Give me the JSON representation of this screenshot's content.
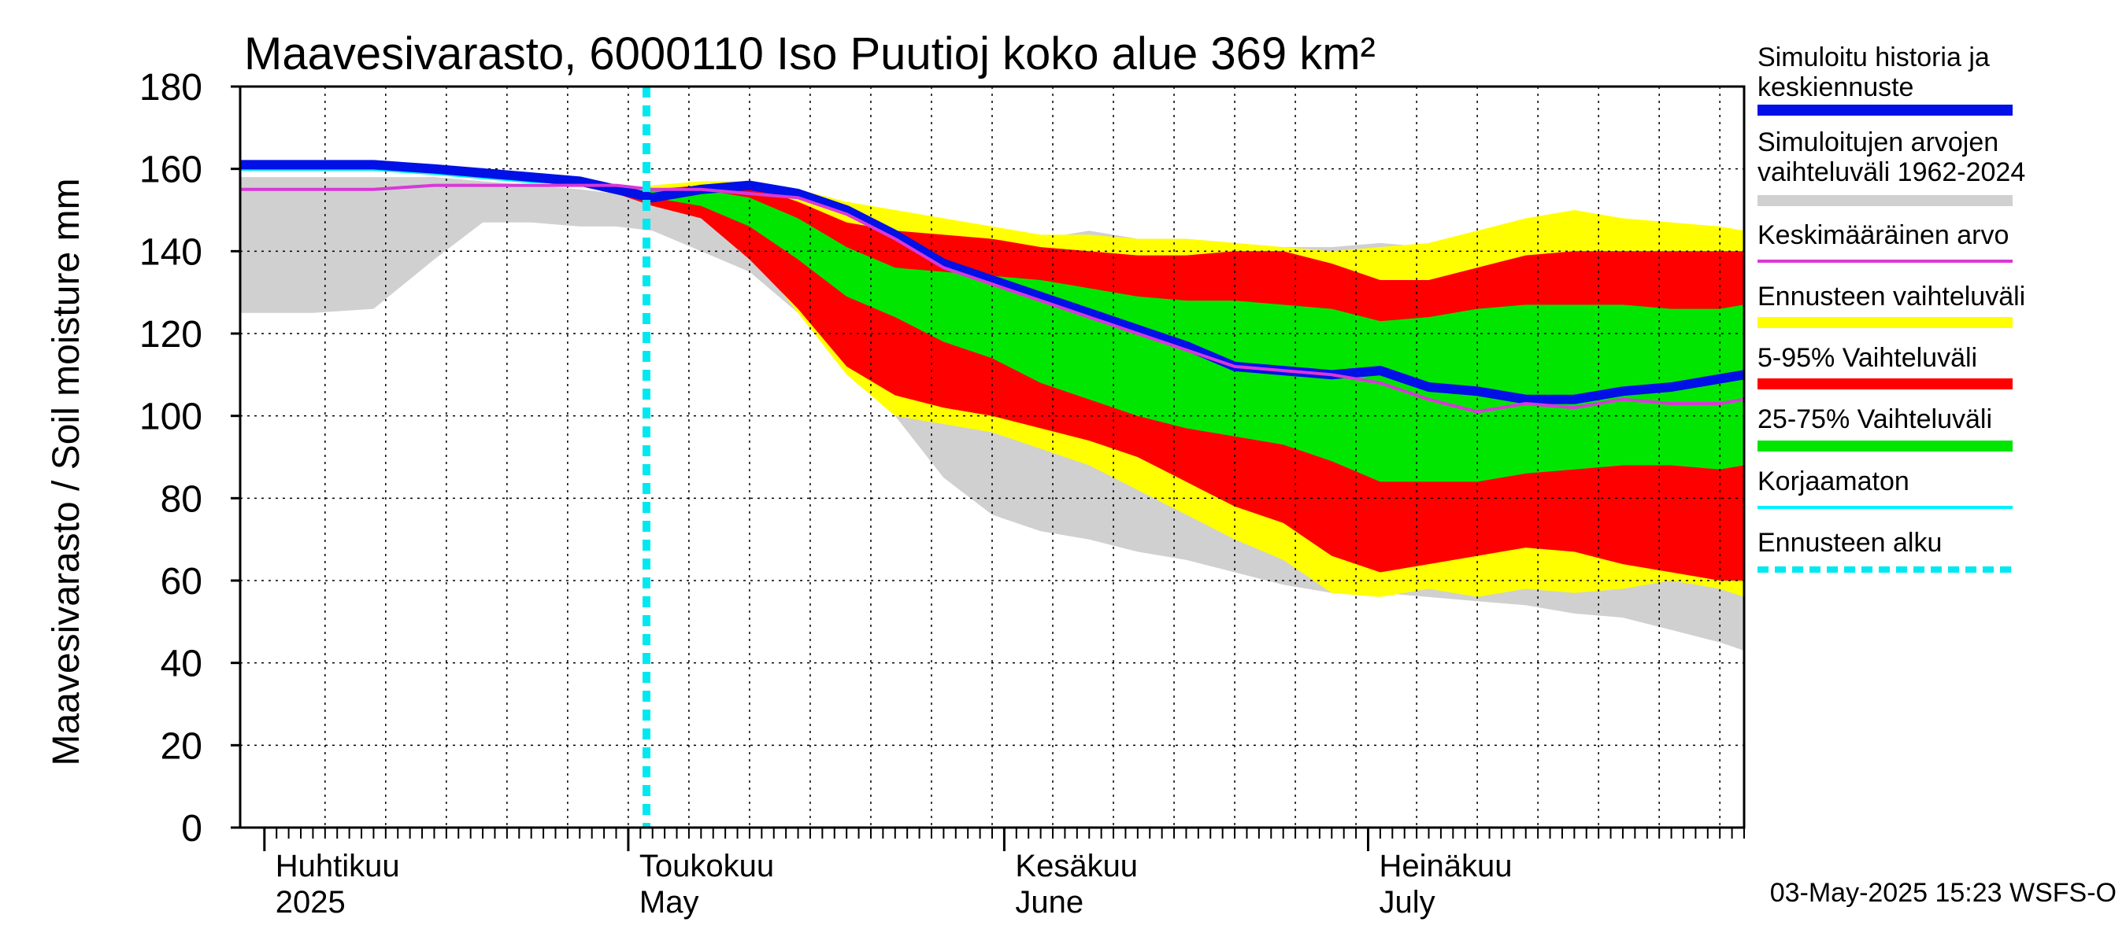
{
  "chart_data": {
    "type": "area",
    "title": "Maavesivarasto, 6000110 Iso Puutioj koko alue 369 km²",
    "ylabel": "Maavesivarasto / Soil moisture   mm",
    "ylim": [
      0,
      180
    ],
    "yticks": [
      0,
      20,
      40,
      60,
      80,
      100,
      120,
      140,
      160,
      180
    ],
    "x_unit": "day of 2025 (0 = 1 April)",
    "xlim": [
      -2,
      122
    ],
    "months": [
      {
        "fi": "Huhtikuu",
        "en": "2025",
        "day": 0
      },
      {
        "fi": "Toukokuu",
        "en": "May",
        "day": 30
      },
      {
        "fi": "Kesäkuu",
        "en": "June",
        "day": 61
      },
      {
        "fi": "Heinäkuu",
        "en": "July",
        "day": 91
      }
    ],
    "forecast_start_day": 31.5,
    "x": [
      -2,
      4,
      9,
      14,
      18,
      22,
      26,
      29,
      32,
      36,
      40,
      44,
      48,
      52,
      56,
      60,
      64,
      68,
      72,
      76,
      80,
      84,
      88,
      92,
      96,
      100,
      104,
      108,
      112,
      116,
      120,
      122
    ],
    "series": [
      {
        "name": "Simuloitujen arvojen vaihteluväli 1962-2024 (ylä)",
        "role": "hist_upper",
        "values": [
          158,
          158,
          158,
          158,
          157,
          156,
          155,
          154,
          153,
          152,
          150,
          149,
          148,
          146,
          145,
          144,
          143,
          145,
          143,
          143,
          142,
          141,
          141,
          142,
          141,
          141,
          143,
          145,
          147,
          147,
          145,
          145
        ]
      },
      {
        "name": "Simuloitujen arvojen vaihteluväli 1962-2024 (ala)",
        "role": "hist_lower",
        "values": [
          125,
          125,
          126,
          138,
          147,
          147,
          146,
          146,
          145,
          140,
          135,
          125,
          115,
          100,
          85,
          76,
          72,
          70,
          67,
          65,
          62,
          59,
          57,
          57,
          56,
          55,
          54,
          52,
          51,
          48,
          45,
          43
        ]
      },
      {
        "name": "Ennusteen vaihteluväli (ylä)",
        "role": "yellow_upper",
        "values": [
          null,
          null,
          null,
          null,
          null,
          null,
          null,
          154,
          156,
          157,
          157,
          155,
          152,
          150,
          148,
          146,
          144,
          144,
          143,
          143,
          142,
          141,
          140,
          141,
          142,
          145,
          148,
          150,
          148,
          147,
          146,
          145
        ]
      },
      {
        "name": "Ennusteen vaihteluväli (ala)",
        "role": "yellow_lower",
        "values": [
          null,
          null,
          null,
          null,
          null,
          null,
          null,
          154,
          152,
          150,
          140,
          125,
          110,
          100,
          98,
          96,
          92,
          88,
          82,
          76,
          70,
          65,
          57,
          56,
          58,
          56,
          58,
          57,
          58,
          60,
          58,
          56
        ]
      },
      {
        "name": "5-95% Vaihteluväli (ylä)",
        "role": "red_upper",
        "values": [
          null,
          null,
          null,
          null,
          null,
          null,
          null,
          154,
          155,
          156,
          156,
          152,
          147,
          145,
          144,
          143,
          141,
          140,
          139,
          139,
          140,
          140,
          137,
          133,
          133,
          136,
          139,
          140,
          140,
          140,
          140,
          140
        ]
      },
      {
        "name": "5-95% Vaihteluväli (ala)",
        "role": "red_lower",
        "values": [
          null,
          null,
          null,
          null,
          null,
          null,
          null,
          154,
          151,
          148,
          138,
          126,
          112,
          105,
          102,
          100,
          97,
          94,
          90,
          84,
          78,
          74,
          66,
          62,
          64,
          66,
          68,
          67,
          64,
          62,
          60,
          60
        ]
      },
      {
        "name": "25-75% Vaihteluväli (ylä)",
        "role": "green_upper",
        "values": [
          null,
          null,
          null,
          null,
          null,
          null,
          null,
          154,
          155,
          155,
          153,
          148,
          141,
          136,
          135,
          134,
          133,
          131,
          129,
          128,
          128,
          127,
          126,
          123,
          124,
          126,
          127,
          127,
          127,
          126,
          126,
          127
        ]
      },
      {
        "name": "25-75% Vaihteluväli (ala)",
        "role": "green_lower",
        "values": [
          null,
          null,
          null,
          null,
          null,
          null,
          null,
          154,
          153,
          151,
          146,
          138,
          129,
          124,
          118,
          114,
          108,
          104,
          100,
          97,
          95,
          93,
          89,
          84,
          84,
          84,
          86,
          87,
          88,
          88,
          87,
          88
        ]
      },
      {
        "name": "Simuloitu historia ja keskiennuste",
        "role": "median",
        "values": [
          161,
          161,
          161,
          160,
          159,
          158,
          157,
          155,
          153,
          155,
          156,
          154,
          150,
          144,
          137,
          133,
          129,
          125,
          121,
          117,
          112,
          111,
          110,
          111,
          107,
          106,
          104,
          104,
          106,
          107,
          109,
          110
        ]
      },
      {
        "name": "Keskimääräinen arvo",
        "role": "mean",
        "values": [
          155,
          155,
          155,
          156,
          156,
          156,
          156,
          156,
          155,
          155,
          154,
          153,
          149,
          143,
          136,
          132,
          128,
          124,
          120,
          116,
          112,
          111,
          110,
          108,
          104,
          101,
          103,
          102,
          104,
          103,
          103,
          104
        ]
      },
      {
        "name": "Korjaamaton",
        "role": "uncorrected",
        "values": [
          160,
          160,
          160,
          159,
          158,
          157,
          157,
          155,
          null,
          null,
          null,
          null,
          null,
          null,
          null,
          null,
          null,
          null,
          null,
          null,
          null,
          null,
          null,
          null,
          null,
          null,
          null,
          null,
          null,
          null,
          null,
          null
        ]
      }
    ],
    "legend": [
      {
        "label": "Simuloitu historia ja keskiennuste",
        "color": "#0010e6",
        "style": "thick-line"
      },
      {
        "label": "Simuloitujen arvojen vaihteluväli 1962-2024",
        "color": "#d0d0d0",
        "style": "thick-line"
      },
      {
        "label": "Keskimääräinen arvo",
        "color": "#d838d8",
        "style": "thin-line"
      },
      {
        "label": "Ennusteen vaihteluväli",
        "color": "#ffff00",
        "style": "thick-line"
      },
      {
        "label": "5-95% Vaihteluväli",
        "color": "#ff0000",
        "style": "thick-line"
      },
      {
        "label": "25-75% Vaihteluväli",
        "color": "#00e600",
        "style": "thick-line"
      },
      {
        "label": "Korjaamaton",
        "color": "#00f0ff",
        "style": "thin-line"
      },
      {
        "label": "Ennusteen alku",
        "color": "#00e8f0",
        "style": "dashed-line"
      }
    ],
    "timestamp": "03-May-2025 15:23 WSFS-O"
  },
  "colors": {
    "hist_band": "#d0d0d0",
    "yellow": "#ffff00",
    "red": "#ff0000",
    "green": "#00e600",
    "median": "#0010e6",
    "mean": "#d838d8",
    "uncorrected": "#00f0ff",
    "forecast_start": "#00e8f0",
    "grid": "#000000"
  }
}
